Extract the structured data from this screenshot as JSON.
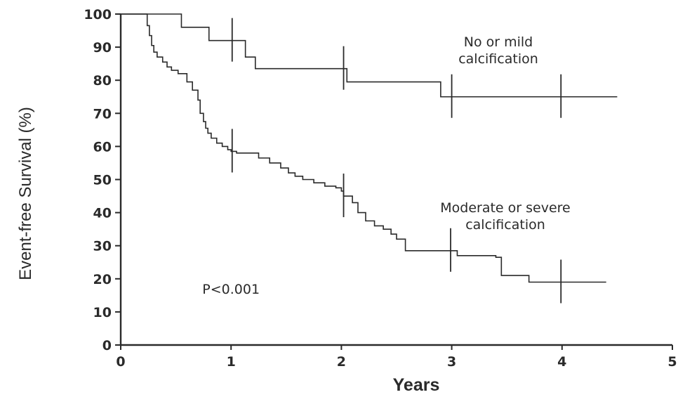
{
  "chart_data": {
    "type": "line",
    "xlabel": "Years",
    "ylabel": "Event-free Survival (%)",
    "xlim": [
      0,
      5
    ],
    "ylim": [
      0,
      100
    ],
    "x_ticks": [
      0,
      1,
      2,
      3,
      4,
      5
    ],
    "y_ticks": [
      0,
      10,
      20,
      30,
      40,
      50,
      60,
      70,
      80,
      90,
      100
    ],
    "x_tick_labels": [
      "0",
      "1",
      "2",
      "3",
      "4",
      "5"
    ],
    "y_tick_labels": [
      "0",
      "10",
      "20",
      "30",
      "40",
      "50",
      "60",
      "70",
      "80",
      "90",
      "100"
    ],
    "grid": false,
    "step": true,
    "series": [
      {
        "label_lines": [
          "No or mild",
          "calcification"
        ],
        "x": [
          0,
          0.55,
          0.8,
          1.13,
          1.22,
          2.05,
          2.9,
          4.5
        ],
        "y": [
          100,
          96,
          92,
          87,
          83.5,
          79.5,
          75,
          75
        ],
        "censor_x": [
          1.01,
          2.02,
          3.0,
          3.99
        ]
      },
      {
        "label_lines": [
          "Moderate or severe",
          "calcification"
        ],
        "x": [
          0,
          0.24,
          0.26,
          0.28,
          0.3,
          0.33,
          0.38,
          0.42,
          0.46,
          0.52,
          0.6,
          0.65,
          0.7,
          0.72,
          0.75,
          0.77,
          0.79,
          0.82,
          0.87,
          0.92,
          0.97,
          1.0,
          1.05,
          1.25,
          1.35,
          1.45,
          1.52,
          1.58,
          1.65,
          1.75,
          1.85,
          1.95,
          2.0,
          2.02,
          2.1,
          2.15,
          2.22,
          2.3,
          2.38,
          2.45,
          2.5,
          2.58,
          2.95,
          3.05,
          3.4,
          3.45,
          3.7,
          4.4
        ],
        "y": [
          100,
          96.5,
          93.5,
          90.5,
          88.5,
          87,
          85.5,
          84,
          83,
          82,
          79.5,
          77,
          74,
          70,
          67.5,
          65.5,
          64,
          62.5,
          61,
          60,
          59,
          58.5,
          58,
          56.5,
          55,
          53.5,
          52,
          51,
          50,
          49,
          48,
          47.5,
          46.5,
          45,
          43,
          40,
          37.5,
          36,
          35,
          33.5,
          32,
          28.5,
          28.5,
          27,
          26.5,
          21,
          19,
          19
        ],
        "censor_x": [
          1.01,
          2.02,
          2.99,
          3.99
        ]
      }
    ],
    "annotations": [
      {
        "text": "P<0.001",
        "x": 1.0,
        "y": 17
      }
    ]
  }
}
